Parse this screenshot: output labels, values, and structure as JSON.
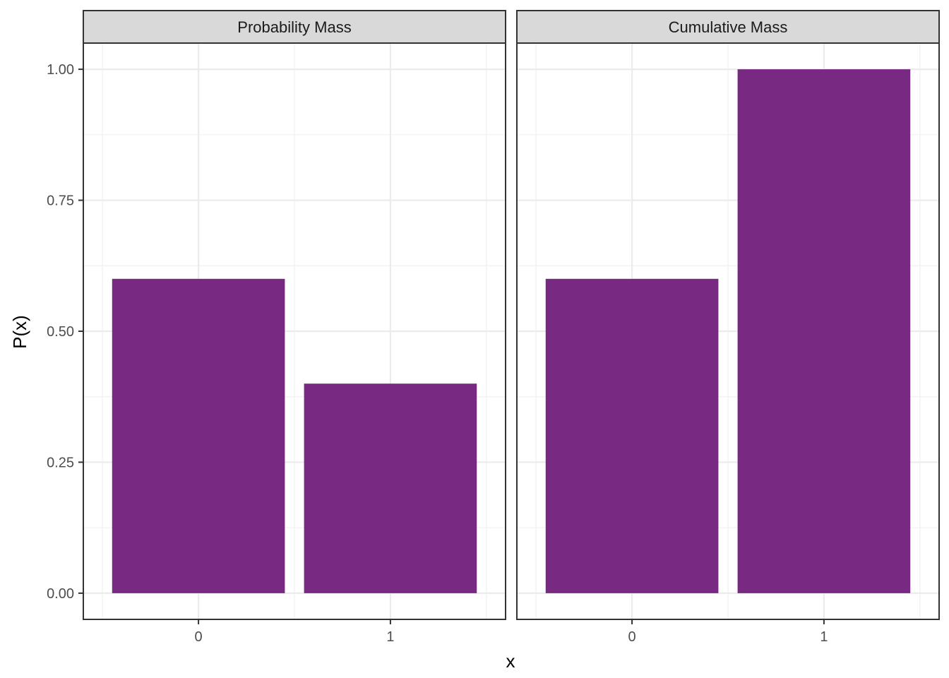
{
  "chart_data": {
    "type": "bar",
    "xlabel": "x",
    "ylabel": "P(x)",
    "ylim": [
      -0.05,
      1.05
    ],
    "yticks": [
      0,
      0.25,
      0.5,
      0.75,
      1
    ],
    "ytick_labels": [
      "0.00",
      "0.25",
      "0.50",
      "0.75",
      "1.00"
    ],
    "categories": [
      "0",
      "1"
    ],
    "grid": true,
    "bar_color": "#782a83",
    "panels": [
      {
        "title": "Probability Mass",
        "values": [
          0.6,
          0.4
        ]
      },
      {
        "title": "Cumulative Mass",
        "values": [
          0.6,
          1.0
        ]
      }
    ]
  }
}
